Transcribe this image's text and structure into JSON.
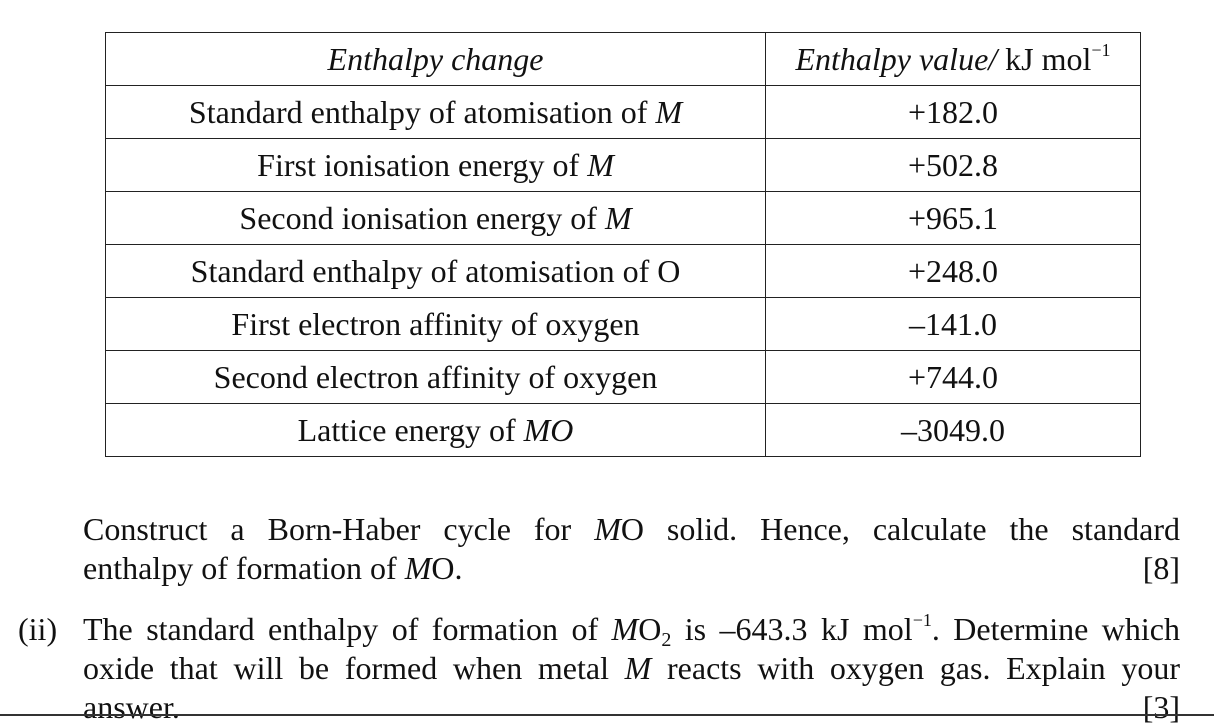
{
  "table": {
    "header": {
      "col1": "Enthalpy change",
      "col2_italic": "Enthalpy value/",
      "col2_unit": " kJ mol",
      "col2_exp": "−1"
    },
    "rows": [
      {
        "pre": "Standard enthalpy of atomisation of ",
        "sym": "M",
        "post": "",
        "value": "+182.0"
      },
      {
        "pre": "First ionisation energy of ",
        "sym": "M",
        "post": "",
        "value": "+502.8"
      },
      {
        "pre": "Second ionisation energy of ",
        "sym": "M",
        "post": "",
        "value": "+965.1"
      },
      {
        "pre": "Standard enthalpy of atomisation of O",
        "sym": "",
        "post": "",
        "value": "+248.0"
      },
      {
        "pre": "First electron affinity of oxygen",
        "sym": "",
        "post": "",
        "value": "–141.0"
      },
      {
        "pre": "Second electron affinity of oxygen",
        "sym": "",
        "post": "",
        "value": "+744.0"
      },
      {
        "pre": "Lattice energy of ",
        "sym": "MO",
        "post": "",
        "value": "–3049.0"
      }
    ]
  },
  "question_i": {
    "line1_pre": "Construct a Born-Haber cycle for ",
    "line1_sym": "M",
    "line1_post": "O solid. Hence, calculate the standard",
    "line2_pre": "enthalpy of formation of ",
    "line2_sym": "M",
    "line2_post": "O.",
    "marks": "[8]"
  },
  "question_ii": {
    "label": "(ii)",
    "line1_pre": "The standard enthalpy of formation of ",
    "line1_sym": "M",
    "line1_o": "O",
    "line1_sub": "2",
    "line1_mid": " is –643.3 kJ mol",
    "line1_exp": "−1",
    "line1_post": ". Determine which",
    "line2_pre": "oxide that will be formed when metal ",
    "line2_sym": "M",
    "line2_post": " reacts with oxygen gas. Explain your",
    "line3": "answer.",
    "marks": "[3]"
  }
}
